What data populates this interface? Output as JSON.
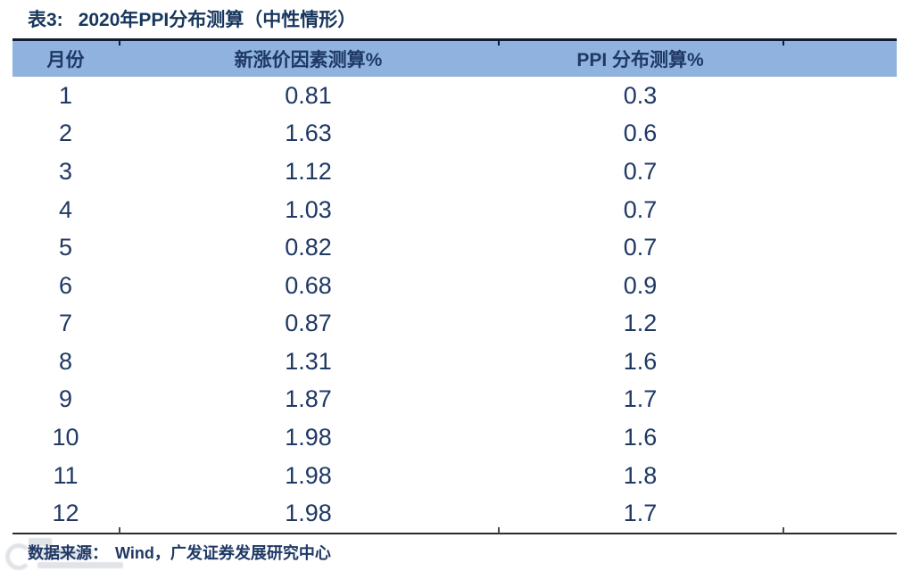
{
  "colors": {
    "title_text": "#17365D",
    "body_text": "#1F3864",
    "header_bg": "#8FB2DF",
    "top_rule": "#101B33",
    "bottom_rule": "#2B2B2B",
    "watermark": "#C8CDD5"
  },
  "caption": {
    "prefix": "表3:",
    "title": "2020年PPI分布测算（中性情形）"
  },
  "table": {
    "headers": [
      "月份",
      "新涨价因素测算%",
      "PPI 分布测算%"
    ],
    "rows": [
      [
        "1",
        "0.81",
        "0.3"
      ],
      [
        "2",
        "1.63",
        "0.6"
      ],
      [
        "3",
        "1.12",
        "0.7"
      ],
      [
        "4",
        "1.03",
        "0.7"
      ],
      [
        "5",
        "0.82",
        "0.7"
      ],
      [
        "6",
        "0.68",
        "0.9"
      ],
      [
        "7",
        "0.87",
        "1.2"
      ],
      [
        "8",
        "1.31",
        "1.6"
      ],
      [
        "9",
        "1.87",
        "1.7"
      ],
      [
        "10",
        "1.98",
        "1.6"
      ],
      [
        "11",
        "1.98",
        "1.8"
      ],
      [
        "12",
        "1.98",
        "1.7"
      ]
    ]
  },
  "footer": {
    "source_label": "数据来源：",
    "source_text": "Wind，广发证券发展研究中心"
  },
  "chart_data": {
    "type": "table",
    "title": "表3: 2020年PPI分布测算（中性情形）",
    "columns": [
      "月份",
      "新涨价因素测算%",
      "PPI 分布测算%"
    ],
    "months": [
      1,
      2,
      3,
      4,
      5,
      6,
      7,
      8,
      9,
      10,
      11,
      12
    ],
    "new_price_factor_pct": [
      0.81,
      1.63,
      1.12,
      1.03,
      0.82,
      0.68,
      0.87,
      1.31,
      1.87,
      1.98,
      1.98,
      1.98
    ],
    "ppi_distribution_pct": [
      0.3,
      0.6,
      0.7,
      0.7,
      0.7,
      0.9,
      1.2,
      1.6,
      1.7,
      1.6,
      1.8,
      1.7
    ],
    "source": "Wind，广发证券发展研究中心"
  }
}
